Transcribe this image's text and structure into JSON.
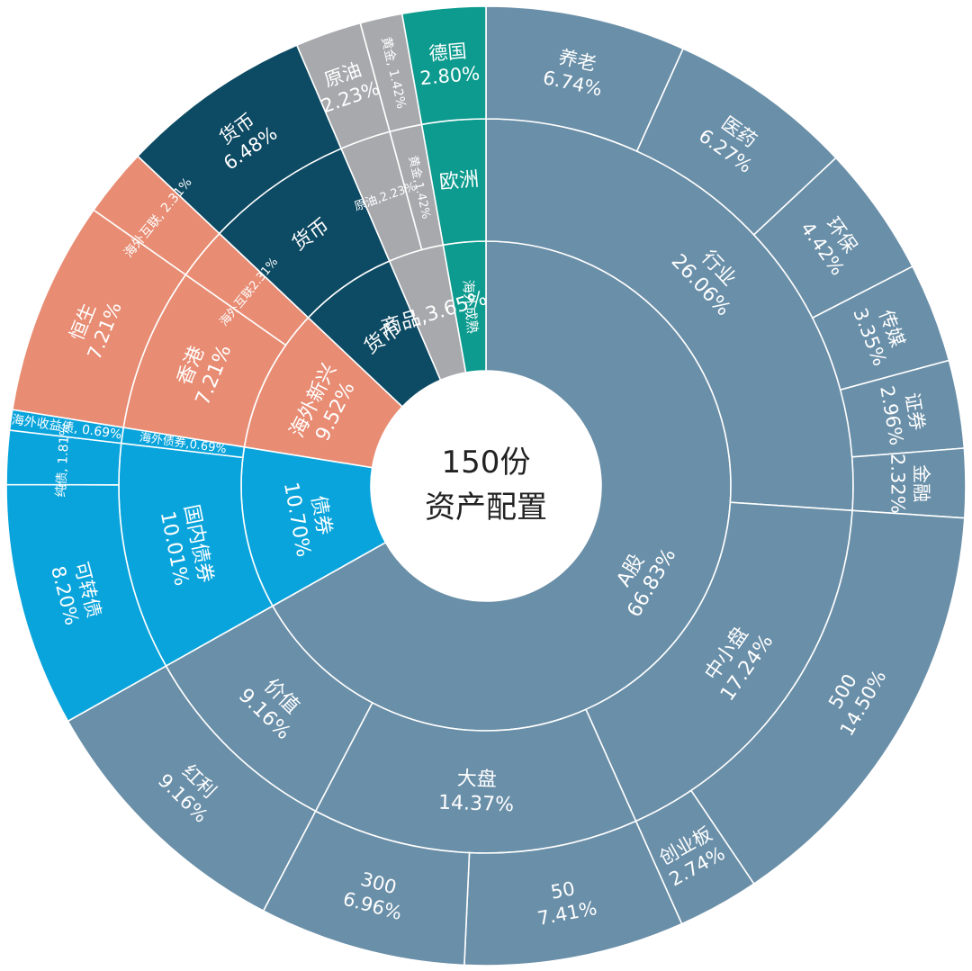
{
  "chart_data": {
    "type": "sunburst",
    "title": "150份资产配置",
    "center_lines": [
      "150份",
      "资产配置"
    ],
    "colors": {
      "a_share": "#6a8fa8",
      "overseas_growth": "#e88c73",
      "bonds": "#0aa4dc",
      "cash": "#0d4a63",
      "commodity": "#a7a9ac",
      "mature_overseas": "#0c9b8e"
    },
    "rings": [
      {
        "level": 1,
        "segments": [
          {
            "name": "A股",
            "value": 66.83,
            "label": "A股",
            "pct": "66.83%",
            "color": "a_share"
          },
          {
            "name": "债券",
            "value": 10.7,
            "label": "债券",
            "pct": "10.70%",
            "color": "bonds"
          },
          {
            "name": "海外新兴",
            "value": 9.52,
            "label": "海外新兴",
            "pct": "9.52%",
            "color": "overseas_growth"
          },
          {
            "name": "货币",
            "value": 6.48,
            "label": "货币",
            "pct": "",
            "color": "cash"
          },
          {
            "name": "商品",
            "value": 3.65,
            "label": "商品,3.65%",
            "pct": "",
            "color": "commodity"
          },
          {
            "name": "海外成熟",
            "value": 2.8,
            "label": "海外成熟",
            "pct": "",
            "color": "mature_overseas"
          }
        ]
      },
      {
        "level": 2,
        "segments": [
          {
            "name": "行业",
            "value": 26.06,
            "label": "行业",
            "pct": "26.06%",
            "color": "a_share"
          },
          {
            "name": "中小盘",
            "value": 17.24,
            "label": "中小盘",
            "pct": "17.24%",
            "color": "a_share"
          },
          {
            "name": "大盘",
            "value": 14.37,
            "label": "大盘",
            "pct": "14.37%",
            "color": "a_share"
          },
          {
            "name": "价值",
            "value": 9.16,
            "label": "价值",
            "pct": "9.16%",
            "color": "a_share"
          },
          {
            "name": "国内债券",
            "value": 10.01,
            "label": "国内债券",
            "pct": "10.01%",
            "color": "bonds"
          },
          {
            "name": "海外债券",
            "value": 0.69,
            "label": "海外债券,0.69%",
            "pct": "",
            "color": "bonds"
          },
          {
            "name": "香港",
            "value": 7.21,
            "label": "香港",
            "pct": "7.21%",
            "color": "overseas_growth"
          },
          {
            "name": "海外互联",
            "value": 2.31,
            "label": "海外互联2.31%",
            "pct": "",
            "color": "overseas_growth"
          },
          {
            "name": "货币",
            "value": 6.48,
            "label": "货币",
            "pct": "",
            "color": "cash"
          },
          {
            "name": "原油",
            "value": 2.23,
            "label": "原油,2.23%",
            "pct": "",
            "color": "commodity"
          },
          {
            "name": "黄金",
            "value": 1.42,
            "label": "黄金,1.42%",
            "pct": "",
            "color": "commodity"
          },
          {
            "name": "欧洲",
            "value": 2.8,
            "label": "欧洲",
            "pct": "",
            "color": "mature_overseas"
          }
        ]
      },
      {
        "level": 3,
        "segments": [
          {
            "name": "养老",
            "value": 6.74,
            "label": "养老",
            "pct": "6.74%",
            "color": "a_share"
          },
          {
            "name": "医药",
            "value": 6.27,
            "label": "医药",
            "pct": "6.27%",
            "color": "a_share"
          },
          {
            "name": "环保",
            "value": 4.42,
            "label": "环保",
            "pct": "4.42%",
            "color": "a_share"
          },
          {
            "name": "传媒",
            "value": 3.35,
            "label": "传媒",
            "pct": "3.35%",
            "color": "a_share"
          },
          {
            "name": "证券",
            "value": 2.96,
            "label": "证券",
            "pct": "2.96%",
            "color": "a_share"
          },
          {
            "name": "金融",
            "value": 2.32,
            "label": "金融",
            "pct": "2.32%",
            "color": "a_share"
          },
          {
            "name": "500",
            "value": 14.5,
            "label": "500",
            "pct": "14.50%",
            "color": "a_share"
          },
          {
            "name": "创业板",
            "value": 2.74,
            "label": "创业板",
            "pct": "2.74%",
            "color": "a_share"
          },
          {
            "name": "50",
            "value": 7.41,
            "label": "50",
            "pct": "7.41%",
            "color": "a_share"
          },
          {
            "name": "300",
            "value": 6.96,
            "label": "300",
            "pct": "6.96%",
            "color": "a_share"
          },
          {
            "name": "红利",
            "value": 9.16,
            "label": "红利",
            "pct": "9.16%",
            "color": "a_share"
          },
          {
            "name": "可转债",
            "value": 8.2,
            "label": "可转债",
            "pct": "8.20%",
            "color": "bonds"
          },
          {
            "name": "纯债",
            "value": 1.81,
            "label": "纯债, 1.81%",
            "pct": "",
            "color": "bonds"
          },
          {
            "name": "海外收益债",
            "value": 0.69,
            "label": "海外收益债, 0.69%",
            "pct": "",
            "color": "bonds"
          },
          {
            "name": "恒生",
            "value": 7.21,
            "label": "恒生",
            "pct": "7.21%",
            "color": "overseas_growth"
          },
          {
            "name": "海外互联",
            "value": 2.31,
            "label": "海外互联, 2.31%",
            "pct": "",
            "color": "overseas_growth"
          },
          {
            "name": "货币",
            "value": 6.48,
            "label": "货币",
            "pct": "6.48%",
            "color": "cash"
          },
          {
            "name": "原油",
            "value": 2.23,
            "label": "原油",
            "pct": "2.23%",
            "color": "commodity"
          },
          {
            "name": "黄金",
            "value": 1.42,
            "label": "黄金, 1.42%",
            "pct": "",
            "color": "commodity"
          },
          {
            "name": "德国",
            "value": 2.8,
            "label": "德国",
            "pct": "2.80%",
            "color": "mature_overseas"
          }
        ]
      }
    ]
  }
}
